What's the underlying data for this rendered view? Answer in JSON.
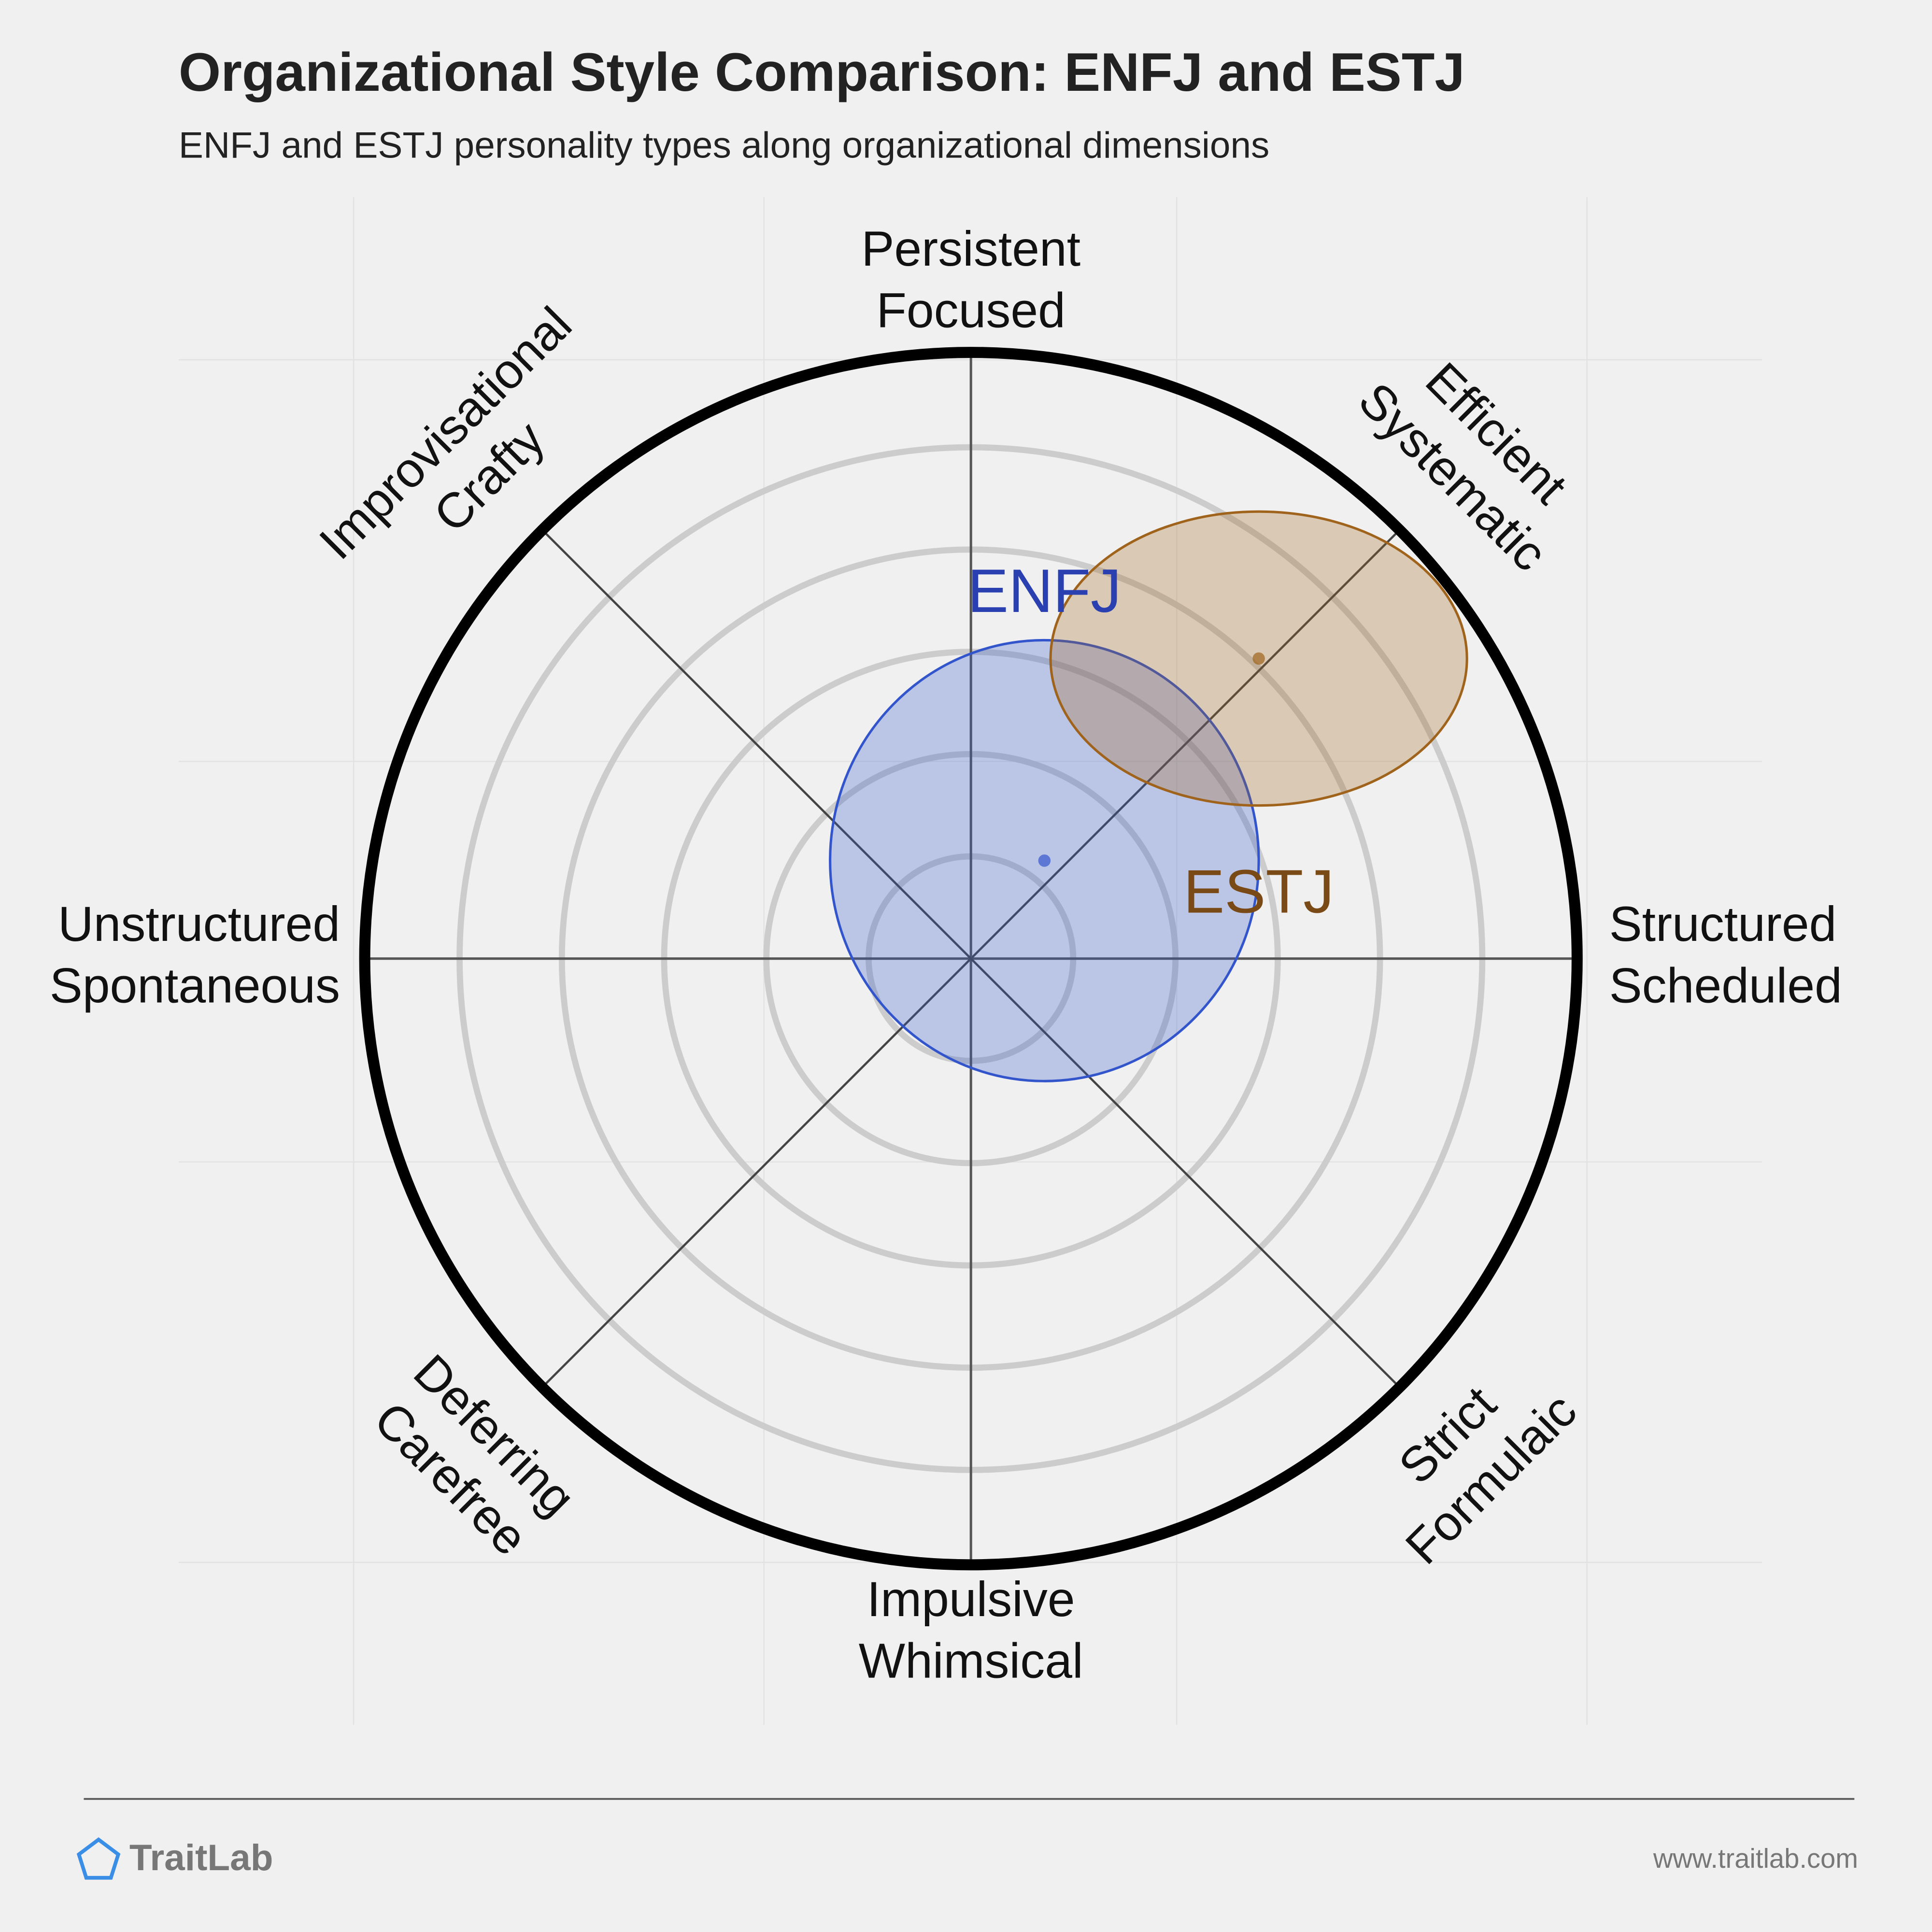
{
  "chart_data": {
    "type": "radial",
    "title": "Organizational Style Comparison: ENFJ and ESTJ",
    "subtitle": "ENFJ and ESTJ personality types along organizational dimensions",
    "xlim": [
      -1,
      1
    ],
    "ylim": [
      -1,
      1
    ],
    "axis_labels": [
      [
        "Structured",
        "Scheduled"
      ],
      [
        "Efficient",
        "Systematic"
      ],
      [
        "Persistent",
        "Focused"
      ],
      [
        "Improvisational",
        "Crafty"
      ],
      [
        "Unstructured",
        "Spontaneous"
      ],
      [
        "Deferring",
        "Carefree"
      ],
      [
        "Impulsive",
        "Whimsical"
      ],
      [
        "Strict",
        "Formulaic"
      ]
    ],
    "series": [
      {
        "name": "ENFJ",
        "color": "#3355cc",
        "x": 0.12,
        "y": 0.16,
        "spread_x": 0.35,
        "spread_y": 0.36
      },
      {
        "name": "ESTJ",
        "color": "#a0631c",
        "x": 0.47,
        "y": 0.49,
        "spread_x": 0.34,
        "spread_y": 0.24
      }
    ]
  },
  "footer": {
    "brand": "TraitLab",
    "url": "www.traitlab.com"
  }
}
